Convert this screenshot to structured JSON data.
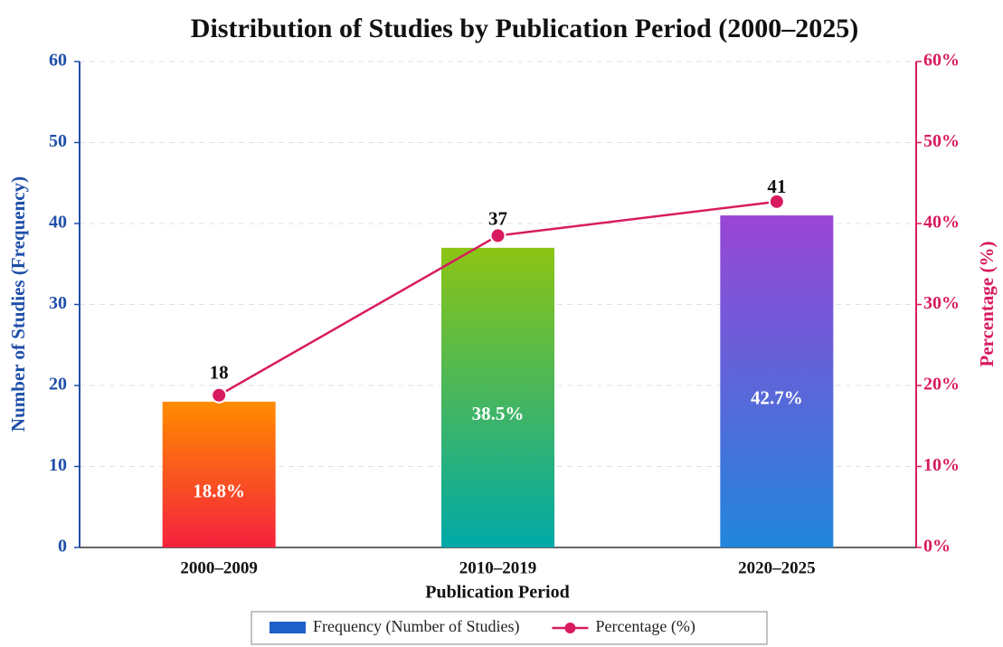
{
  "chart_data": {
    "type": "bar_line",
    "title": "Distribution of Studies by Publication Period (2000–2025)",
    "x_label": "Publication Period",
    "y_label": "Number of Studies (Frequency)",
    "y2_label": "Percentage (%)",
    "categories": [
      "2000–2009",
      "2010–2019",
      "2020–2025"
    ],
    "series": [
      {
        "name": "Frequency (Number of Studies)",
        "type": "bar",
        "color": "#1f5fc8",
        "values": [
          18,
          37,
          41
        ],
        "gradients": [
          [
            "#ff8c00",
            "#f5213d"
          ],
          [
            "#8cc414",
            "#00a9a8"
          ],
          [
            "#9a45d6",
            "#2186dc"
          ]
        ]
      },
      {
        "name": "Percentage (%)",
        "type": "line",
        "axis": "y2",
        "color": "#d81b60",
        "values": [
          18.8,
          38.5,
          42.7
        ],
        "value_labels": [
          "18.8%",
          "38.5%",
          "42.7%"
        ]
      }
    ],
    "ylim": [
      0,
      60
    ],
    "yticks": [
      0,
      10,
      20,
      30,
      40,
      50,
      60
    ],
    "y2lim": [
      0,
      60
    ],
    "y2ticks": [
      {
        "value": 0,
        "label": "0%"
      },
      {
        "value": 10,
        "label": "10%"
      },
      {
        "value": 20,
        "label": "20%"
      },
      {
        "value": 30,
        "label": "30%"
      },
      {
        "value": 40,
        "label": "40%"
      },
      {
        "value": 50,
        "label": "50%"
      },
      {
        "value": 60,
        "label": "60%"
      }
    ],
    "grid": true,
    "legend": "bottom"
  }
}
